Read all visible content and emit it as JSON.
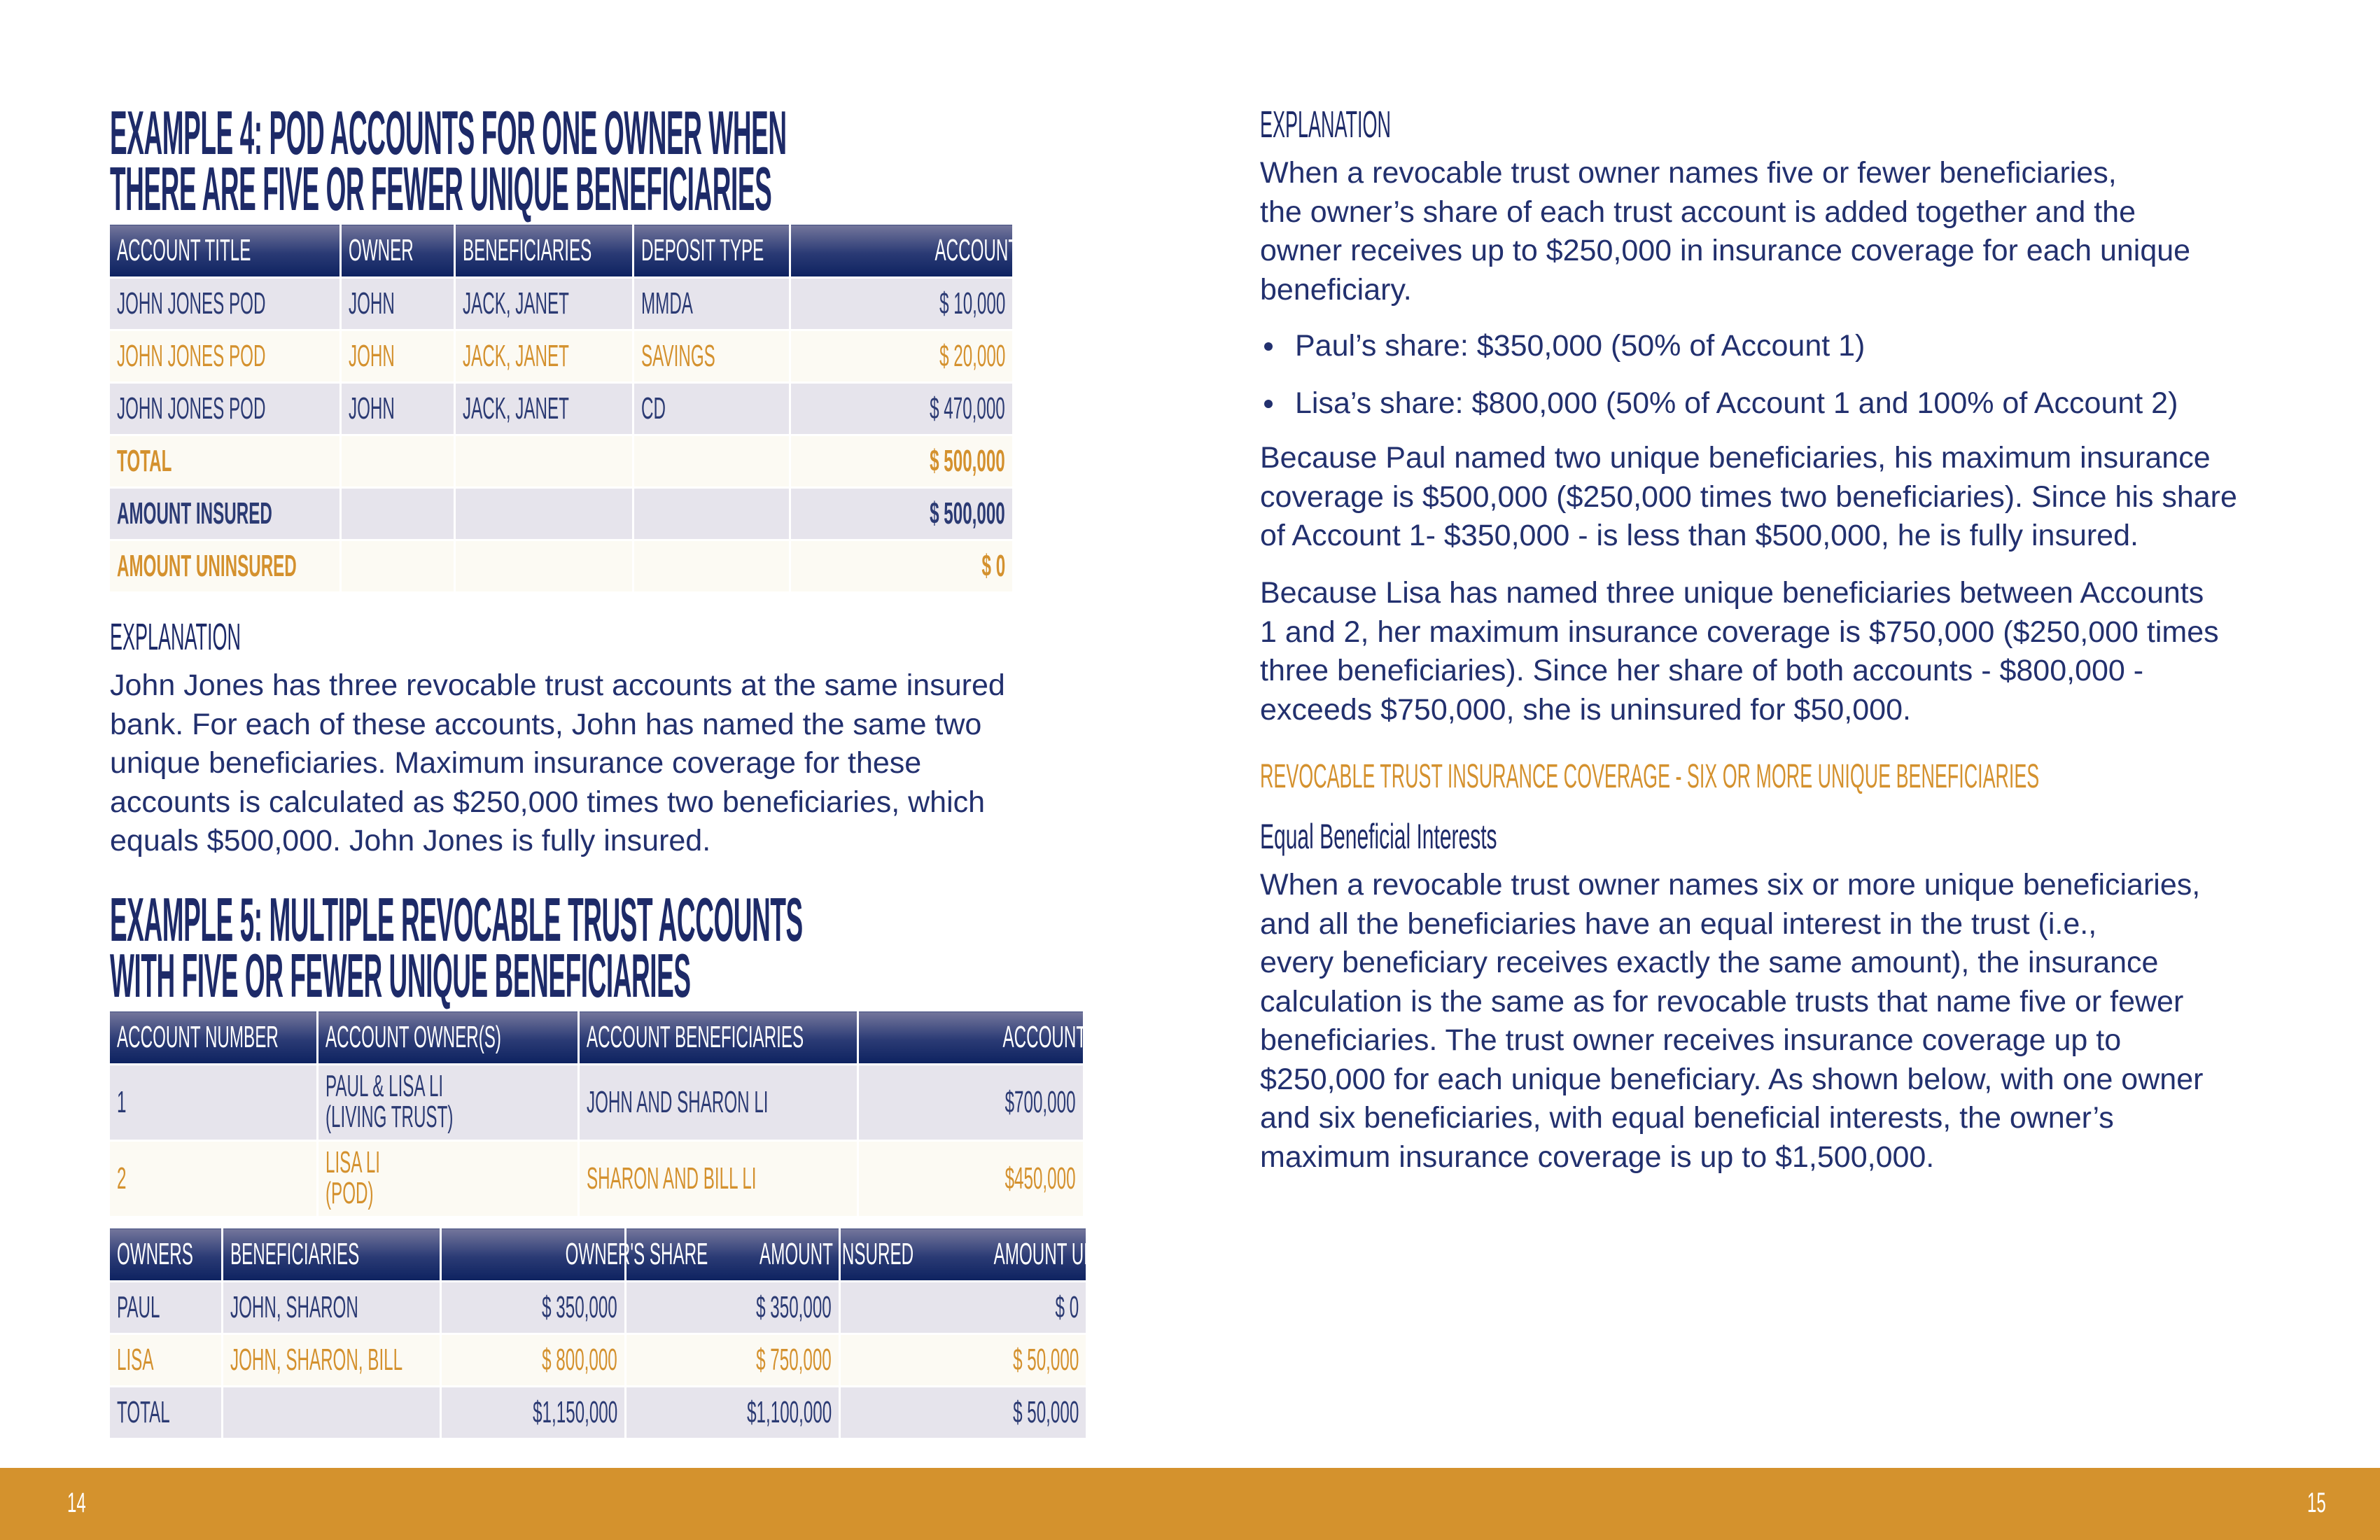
{
  "left": {
    "example4_title": [
      "EXAMPLE 4: POD ACCOUNTS FOR ONE OWNER WHEN",
      "THERE ARE FIVE OR FEWER UNIQUE BENEFICIARIES"
    ],
    "table1": {
      "headers": [
        "ACCOUNT TITLE",
        "OWNER",
        "BENEFICIARIES",
        "DEPOSIT TYPE",
        "ACCOUNT BALANCE"
      ],
      "rows": [
        [
          "JOHN JONES POD",
          "JOHN",
          "JACK, JANET",
          "MMDA",
          "$ 10,000"
        ],
        [
          "JOHN JONES POD",
          "JOHN",
          "JACK, JANET",
          "SAVINGS",
          "$ 20,000"
        ],
        [
          "JOHN JONES POD",
          "JOHN",
          "JACK, JANET",
          "CD",
          "$ 470,000"
        ],
        [
          "TOTAL",
          "",
          "",
          "",
          "$ 500,000"
        ],
        [
          "AMOUNT INSURED",
          "",
          "",
          "",
          "$ 500,000"
        ],
        [
          "AMOUNT UNINSURED",
          "",
          "",
          "",
          "$ 0"
        ]
      ]
    },
    "explanation_heading": "EXPLANATION",
    "explanation_lines": [
      "John Jones has three revocable trust accounts at the same insured",
      "bank. For each of these accounts, John has named the same two",
      "unique beneficiaries. Maximum insurance coverage for these",
      "accounts is calculated as $250,000 times two beneficiaries, which",
      "equals $500,000. John Jones is fully insured."
    ],
    "example5_title": [
      "EXAMPLE 5: MULTIPLE REVOCABLE TRUST ACCOUNTS",
      "WITH FIVE OR FEWER UNIQUE BENEFICIARIES"
    ],
    "table2": {
      "headers": [
        "ACCOUNT NUMBER",
        "ACCOUNT OWNER(S)",
        "ACCOUNT BENEFICIARIES",
        "ACCOUNT BALANCE"
      ],
      "rows": [
        [
          "1",
          "PAUL & LISA LI\n(LIVING TRUST)",
          "JOHN AND SHARON LI",
          "$700,000"
        ],
        [
          "2",
          "LISA LI\n(POD)",
          "SHARON AND BILL LI",
          "$450,000"
        ]
      ]
    },
    "table3": {
      "headers": [
        "OWNERS",
        "BENEFICIARIES",
        "OWNER'S SHARE",
        "AMOUNT INSURED",
        "AMOUNT UNINSURED"
      ],
      "rows": [
        [
          "PAUL",
          "JOHN, SHARON",
          "$ 350,000",
          "$ 350,000",
          "$ 0"
        ],
        [
          "LISA",
          "JOHN, SHARON, BILL",
          "$ 800,000",
          "$ 750,000",
          "$ 50,000"
        ],
        [
          "TOTAL",
          "",
          "$1,150,000",
          "$1,100,000",
          "$ 50,000"
        ]
      ]
    },
    "page_number": "14"
  },
  "right": {
    "explanation_heading": "EXPLANATION",
    "p1": [
      "When a revocable trust owner names five or fewer beneficiaries,",
      "the owner’s share of each trust account is added together and the",
      "owner receives up to $250,000 in insurance coverage for each unique",
      "beneficiary."
    ],
    "bullets": [
      "Paul’s share: $350,000 (50% of Account 1)",
      "Lisa’s share: $800,000 (50% of Account 1 and 100% of Account 2)"
    ],
    "p2": [
      "Because Paul named two unique beneficiaries, his maximum insurance",
      "coverage is $500,000 ($250,000 times two beneficiaries). Since his share",
      "of Account 1- $350,000 - is less than $500,000, he is fully insured."
    ],
    "p3": [
      "Because Lisa has named three unique beneficiaries between Accounts",
      "1 and 2, her maximum insurance coverage is $750,000 ($250,000 times",
      "three beneficiaries). Since her share of both accounts - $800,000 -",
      "exceeds $750,000, she is uninsured for $50,000."
    ],
    "section_heading": "REVOCABLE TRUST INSURANCE COVERAGE - SIX OR MORE UNIQUE BENEFICIARIES",
    "subheading": "Equal Beneficial Interests",
    "p4": [
      "When a revocable trust owner names six or more unique beneficiaries,",
      "and all the beneficiaries have an equal interest in the trust (i.e.,",
      "every beneficiary receives exactly the same amount), the insurance",
      "calculation is the same as for revocable trusts that name five or fewer",
      "beneficiaries. The trust owner receives insurance coverage up to",
      "$250,000 for each unique beneficiary. As shown below, with one owner",
      "and six beneficiaries, with equal beneficial interests, the owner’s",
      "maximum insurance coverage is up to $1,500,000."
    ],
    "page_number": "15"
  },
  "colors": {
    "navy": "#1d2a68",
    "gold": "#d4912e",
    "footer": "#d4922d",
    "row_shade": "#e6e4ec",
    "row_light": "#fcfaf3"
  }
}
